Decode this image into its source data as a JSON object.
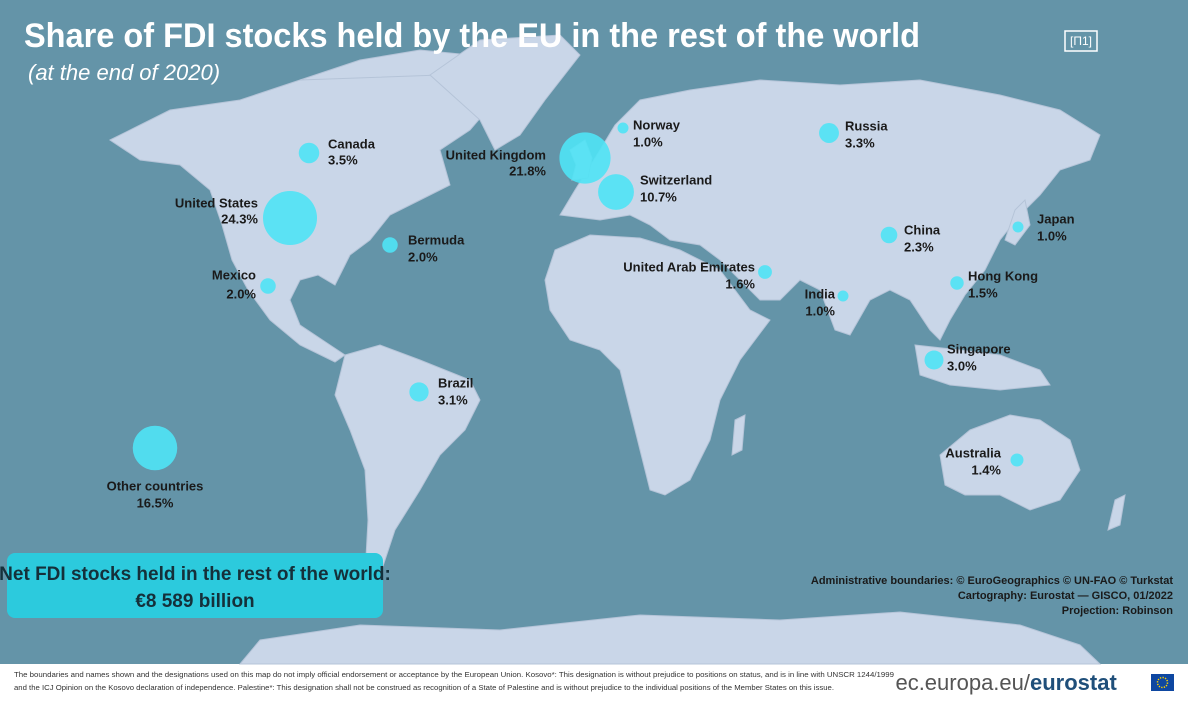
{
  "map": {
    "title": "Share of FDI stocks held by the EU in the rest of the world",
    "subtitle": "(at the end of 2020)",
    "badge": "[П1]",
    "names": [
      "Canada",
      "United States",
      "United Kingdom",
      "Switzerland",
      "Norway",
      "Russia",
      "Bermuda",
      "Mexico",
      "Japan",
      "China",
      "United Arab Emirates",
      "Hong Kong",
      "India",
      "Singapore",
      "Brazil",
      "Australia",
      "Other countries"
    ],
    "values": [
      3.5,
      24.3,
      21.8,
      10.7,
      1.0,
      3.3,
      2.0,
      2.0,
      1.0,
      2.3,
      1.6,
      1.5,
      1.0,
      3.0,
      3.1,
      1.4,
      16.5
    ],
    "value_labels": [
      "3.5%",
      "24.3%",
      "21.8%",
      "10.7%",
      "1.0%",
      "3.3%",
      "2.0%",
      "2.0%",
      "1.0%",
      "2.3%",
      "1.6%",
      "1.5%",
      "1.0%",
      "3.0%",
      "3.1%",
      "1.4%",
      "16.5%"
    ],
    "color": "#4fe3f5",
    "total_box": {
      "label": "Net FDI stocks held in the rest of the world:",
      "value": "€8 589  billion"
    },
    "credits": [
      "Administrative boundaries: © EuroGeographics © UN-FAO © Turkstat",
      "Cartography: Eurostat — GISCO, 01/2022",
      "Projection: Robinson"
    ],
    "footer": {
      "lines": [
        "The boundaries and names shown and the designations used on this map do not imply official endorsement or acceptance by the European Union. Kosovo*: This designation is without prejudice to positions on status, and is in line with UNSCR 1244/1999",
        "and the ICJ Opinion on the Kosovo declaration of independence. Palestine*: This designation shall not be construed as recognition of a State of Palestine and is without prejudice to the individual positions of the Member States on this issue."
      ],
      "site": "ec.europa.eu/",
      "brand": "eurostat"
    }
  }
}
